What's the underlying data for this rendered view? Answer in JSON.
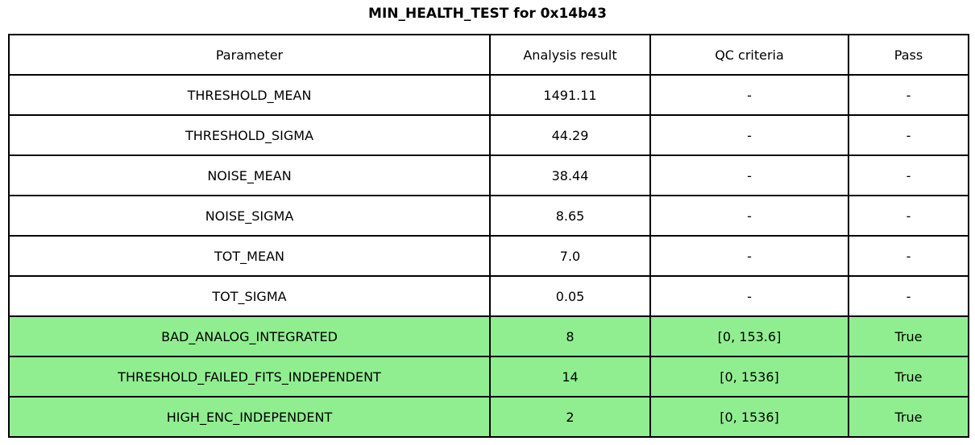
{
  "colors": {
    "highlight_green": "#90EE90",
    "border": "#000000",
    "background": "#FFFFFF",
    "text": "#000000"
  },
  "chart_data": {
    "type": "table",
    "title": "MIN_HEALTH_TEST for 0x14b43",
    "columns": [
      "Parameter",
      "Analysis result",
      "QC criteria",
      "Pass"
    ],
    "rows": [
      [
        "THRESHOLD_MEAN",
        "1491.11",
        "-",
        "-"
      ],
      [
        "THRESHOLD_SIGMA",
        "44.29",
        "-",
        "-"
      ],
      [
        "NOISE_MEAN",
        "38.44",
        "-",
        "-"
      ],
      [
        "NOISE_SIGMA",
        "8.65",
        "-",
        "-"
      ],
      [
        "TOT_MEAN",
        "7.0",
        "-",
        "-"
      ],
      [
        "TOT_SIGMA",
        "0.05",
        "-",
        "-"
      ],
      [
        "BAD_ANALOG_INTEGRATED",
        "8",
        "[0, 153.6]",
        "True"
      ],
      [
        "THRESHOLD_FAILED_FITS_INDEPENDENT",
        "14",
        "[0, 1536]",
        "True"
      ],
      [
        "HIGH_ENC_INDEPENDENT",
        "2",
        "[0, 1536]",
        "True"
      ]
    ],
    "highlighted_rows": [
      6,
      7,
      8
    ],
    "highlight_color": "#90EE90",
    "layout": {
      "grid": true,
      "header_row": true
    }
  }
}
